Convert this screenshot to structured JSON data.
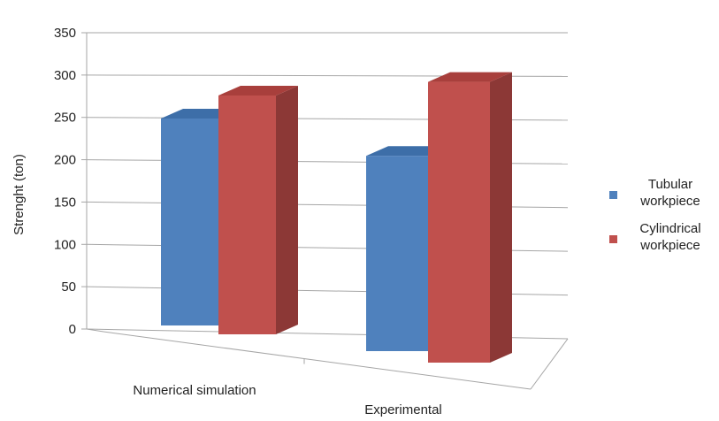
{
  "chart_data": {
    "type": "bar",
    "subtype": "3d-clustered-column",
    "categories": [
      "Numerical simulation",
      "Experimental"
    ],
    "series": [
      {
        "name": [
          "Tubular",
          "workpiece"
        ],
        "values": [
          247,
          233
        ],
        "color": "#4f81bd",
        "top_color": "#3d6ea8",
        "side_color": "#385d8a"
      },
      {
        "name": [
          "Cylindrical",
          "workpiece"
        ],
        "values": [
          285,
          335
        ],
        "color": "#c0504d",
        "top_color": "#a83f3c",
        "side_color": "#8c3836"
      }
    ],
    "ylabel": "Strenght (ton)",
    "ylim": [
      0,
      350
    ],
    "yticks": [
      0,
      50,
      100,
      150,
      200,
      250,
      300,
      350
    ],
    "grid": true,
    "legend_position": "right"
  }
}
